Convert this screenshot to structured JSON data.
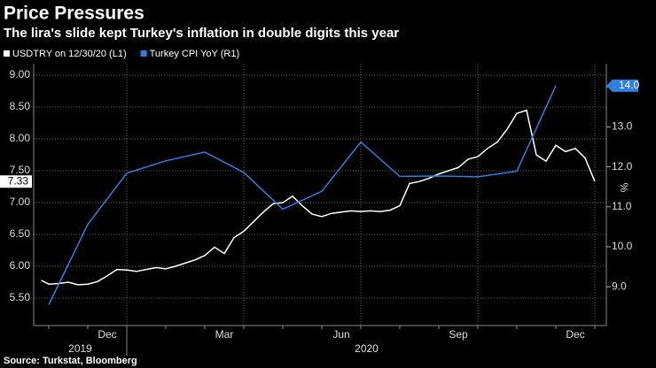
{
  "chart_data": {
    "type": "line",
    "title": "Price Pressures",
    "subtitle": "The lira's slide kept Turkey's inflation in double digits this year",
    "source": "Source: Turkstat, Bloomberg",
    "y2_label": "%",
    "grid": true,
    "ylim": [
      5.07,
      9.18
    ],
    "yticks": [
      {
        "value": 5.5,
        "label": "5.50"
      },
      {
        "value": 6,
        "label": "6.00"
      },
      {
        "value": 6.5,
        "label": "6.50"
      },
      {
        "value": 7,
        "label": "7.00"
      },
      {
        "value": 7.5,
        "label": "7.50"
      },
      {
        "value": 8,
        "label": "8.00"
      },
      {
        "value": 8.5,
        "label": "8.50"
      },
      {
        "value": 9,
        "label": "9.00"
      }
    ],
    "y2lim": [
      8.03,
      14.58
    ],
    "y2ticks": [
      {
        "value": 9,
        "label": "9.0"
      },
      {
        "value": 10,
        "label": "10.0"
      },
      {
        "value": 11,
        "label": "11.0"
      },
      {
        "value": 12,
        "label": "12.0"
      },
      {
        "value": 13,
        "label": "13.0"
      },
      {
        "value": 14,
        "label": "14.0"
      }
    ],
    "xticks": [
      {
        "value": "2019-12",
        "label": "Dec"
      },
      {
        "value": "2020-03",
        "label": "Mar"
      },
      {
        "value": "2020-06",
        "label": "Jun"
      },
      {
        "value": "2020-09",
        "label": "Sep"
      },
      {
        "value": "2020-12",
        "label": "Dec"
      }
    ],
    "years": [
      "2019",
      "2020"
    ],
    "series": [
      {
        "name": "USDTRY on 12/30/20 (L1)",
        "color": "#ffffff",
        "axis": "y",
        "x": [
          "2019-10",
          "2019-10",
          "2019-11",
          "2019-11",
          "2019-11",
          "2019-11",
          "2019-12",
          "2019-12",
          "2019-12",
          "2019-12",
          "2020-01",
          "2020-01",
          "2020-01",
          "2020-01",
          "2020-02",
          "2020-02",
          "2020-02",
          "2020-02",
          "2020-03",
          "2020-03",
          "2020-03",
          "2020-03",
          "2020-04",
          "2020-04",
          "2020-04",
          "2020-04",
          "2020-05",
          "2020-05",
          "2020-05",
          "2020-05",
          "2020-06",
          "2020-06",
          "2020-06",
          "2020-06",
          "2020-07",
          "2020-07",
          "2020-07",
          "2020-07",
          "2020-08",
          "2020-08",
          "2020-08",
          "2020-08",
          "2020-09",
          "2020-09",
          "2020-09",
          "2020-09",
          "2020-10",
          "2020-10",
          "2020-10",
          "2020-10",
          "2020-11",
          "2020-11",
          "2020-11",
          "2020-11",
          "2020-12",
          "2020-12",
          "2020-12",
          "2020-12"
        ],
        "values": [
          5.78,
          5.72,
          5.73,
          5.75,
          5.71,
          5.72,
          5.76,
          5.85,
          5.95,
          5.94,
          5.92,
          5.95,
          5.98,
          5.96,
          6.0,
          6.05,
          6.1,
          6.17,
          6.3,
          6.2,
          6.45,
          6.55,
          6.7,
          6.85,
          6.98,
          7.0,
          7.1,
          6.95,
          6.82,
          6.78,
          6.83,
          6.85,
          6.87,
          6.86,
          6.87,
          6.86,
          6.88,
          6.95,
          7.3,
          7.33,
          7.38,
          7.45,
          7.5,
          7.55,
          7.68,
          7.72,
          7.85,
          7.95,
          8.15,
          8.4,
          8.45,
          7.75,
          7.65,
          7.9,
          7.8,
          7.85,
          7.7,
          7.33
        ],
        "value_labels": [
          null,
          null,
          null,
          null,
          null,
          null,
          null,
          null,
          null,
          null,
          null,
          null,
          null,
          null,
          null,
          null,
          null,
          null,
          null,
          null,
          null,
          null,
          null,
          null,
          null,
          null,
          null,
          null,
          null,
          null,
          null,
          null,
          null,
          null,
          null,
          null,
          null,
          null,
          null,
          null,
          null,
          null,
          null,
          null,
          null,
          null,
          null,
          null,
          null,
          null,
          null,
          null,
          null,
          null,
          null,
          null,
          null,
          "7.33"
        ]
      },
      {
        "name": "Turkey CPI YoY (R1)",
        "color": "#2f7fe0",
        "axis": "y2",
        "x": [
          "2019-10",
          "2019-11",
          "2019-12",
          "2020-01",
          "2020-02",
          "2020-03",
          "2020-04",
          "2020-05",
          "2020-06",
          "2020-07",
          "2020-08",
          "2020-09",
          "2020-10",
          "2020-11"
        ],
        "values": [
          8.55,
          10.56,
          11.84,
          12.15,
          12.37,
          11.86,
          10.94,
          11.39,
          12.62,
          11.76,
          11.77,
          11.75,
          11.89,
          14.03
        ],
        "value_labels": [
          null,
          null,
          null,
          null,
          null,
          null,
          null,
          null,
          null,
          null,
          null,
          null,
          null,
          "14.0"
        ]
      }
    ]
  }
}
